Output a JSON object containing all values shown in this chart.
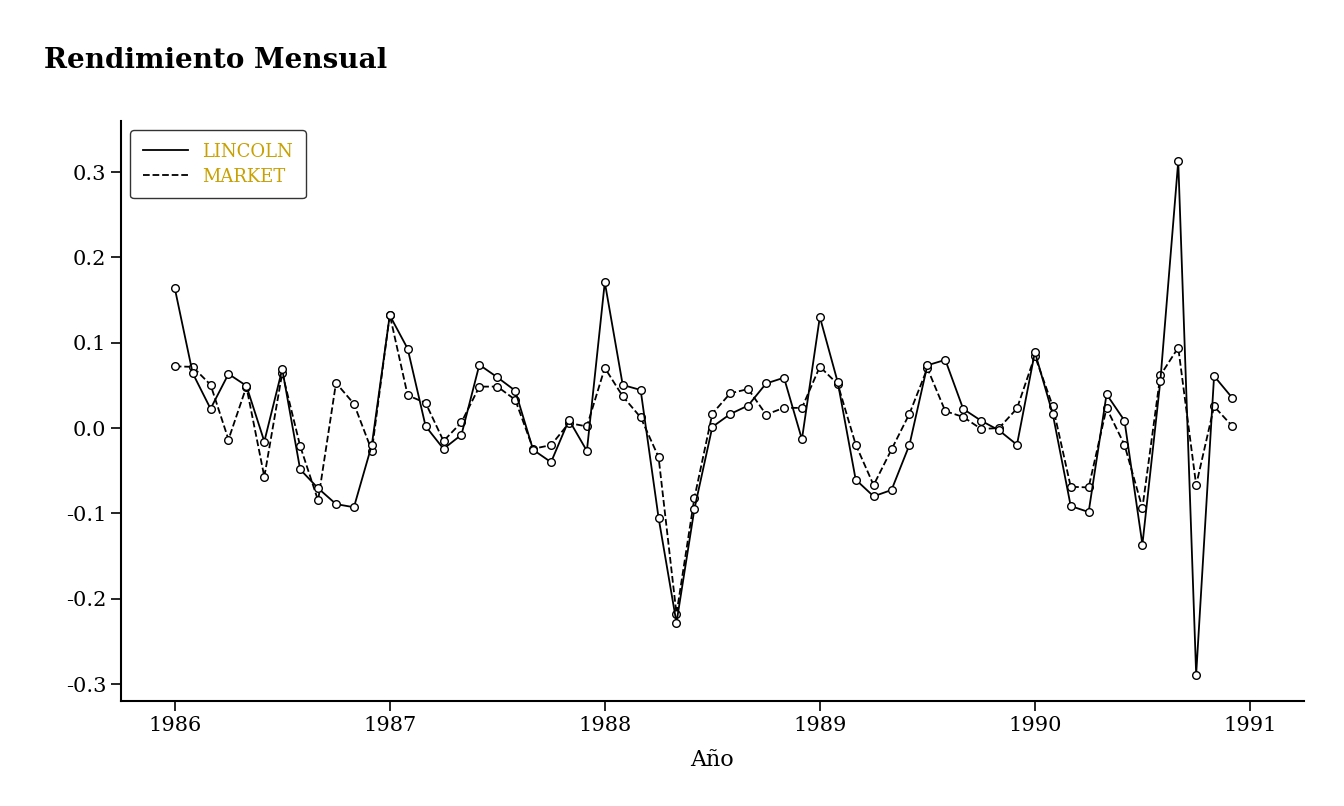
{
  "title": "Rendimiento Mensual",
  "xlabel": "Año",
  "lincoln": [
    0.1643,
    0.0645,
    0.0227,
    0.0635,
    0.0496,
    -0.0157,
    0.0691,
    -0.0484,
    -0.0704,
    -0.089,
    -0.0927,
    -0.0196,
    0.1322,
    0.093,
    0.0023,
    -0.0243,
    -0.0078,
    0.0742,
    0.0596,
    0.0439,
    -0.0254,
    -0.0399,
    0.0097,
    -0.0267,
    0.171,
    0.0506,
    0.0447,
    -0.105,
    -0.228,
    -0.0948,
    0.0014,
    0.0165,
    0.0265,
    0.0523,
    0.0591,
    -0.0131,
    0.1303,
    0.0537,
    -0.0603,
    -0.0799,
    -0.0725,
    -0.0196,
    0.0736,
    0.08,
    0.0225,
    0.0087,
    -0.0026,
    -0.0195,
    0.0891,
    0.0163,
    -0.0913,
    -0.0983,
    0.0397,
    0.0088,
    -0.1364,
    0.0551,
    0.3127,
    -0.2887,
    0.0611,
    0.0358
  ],
  "market": [
    0.0724,
    0.0718,
    0.0508,
    -0.0134,
    0.0485,
    -0.057,
    0.0648,
    -0.021,
    -0.0848,
    0.053,
    0.0285,
    -0.0265,
    0.1329,
    0.0384,
    0.0296,
    -0.0151,
    0.0068,
    0.0486,
    0.0487,
    0.0333,
    -0.0242,
    -0.0199,
    0.0059,
    0.002,
    0.0706,
    0.0373,
    0.0126,
    -0.0339,
    -0.2176,
    -0.0818,
    0.017,
    0.0408,
    0.0458,
    0.0159,
    0.0238,
    0.0237,
    0.072,
    0.0515,
    -0.0192,
    -0.0668,
    -0.025,
    0.0168,
    0.0702,
    0.0199,
    0.0131,
    -0.001,
    0.0001,
    0.023,
    0.0846,
    0.0257,
    -0.0687,
    -0.0695,
    0.0235,
    -0.0196,
    -0.0935,
    0.0617,
    0.0944,
    -0.0668,
    0.0255,
    0.0027
  ],
  "line_color": "#000000",
  "background_color": "#ffffff",
  "ylim": [
    -0.32,
    0.36
  ],
  "yticks": [
    -0.3,
    -0.2,
    -0.1,
    0.0,
    0.1,
    0.2,
    0.3
  ],
  "xlim_lo": 1985.75,
  "xlim_hi": 1991.25,
  "legend_text_color": "#c8a000",
  "title_fontsize": 20,
  "label_fontsize": 16,
  "tick_fontsize": 15,
  "legend_fontsize": 13,
  "marker_size": 5.5,
  "linewidth": 1.3
}
